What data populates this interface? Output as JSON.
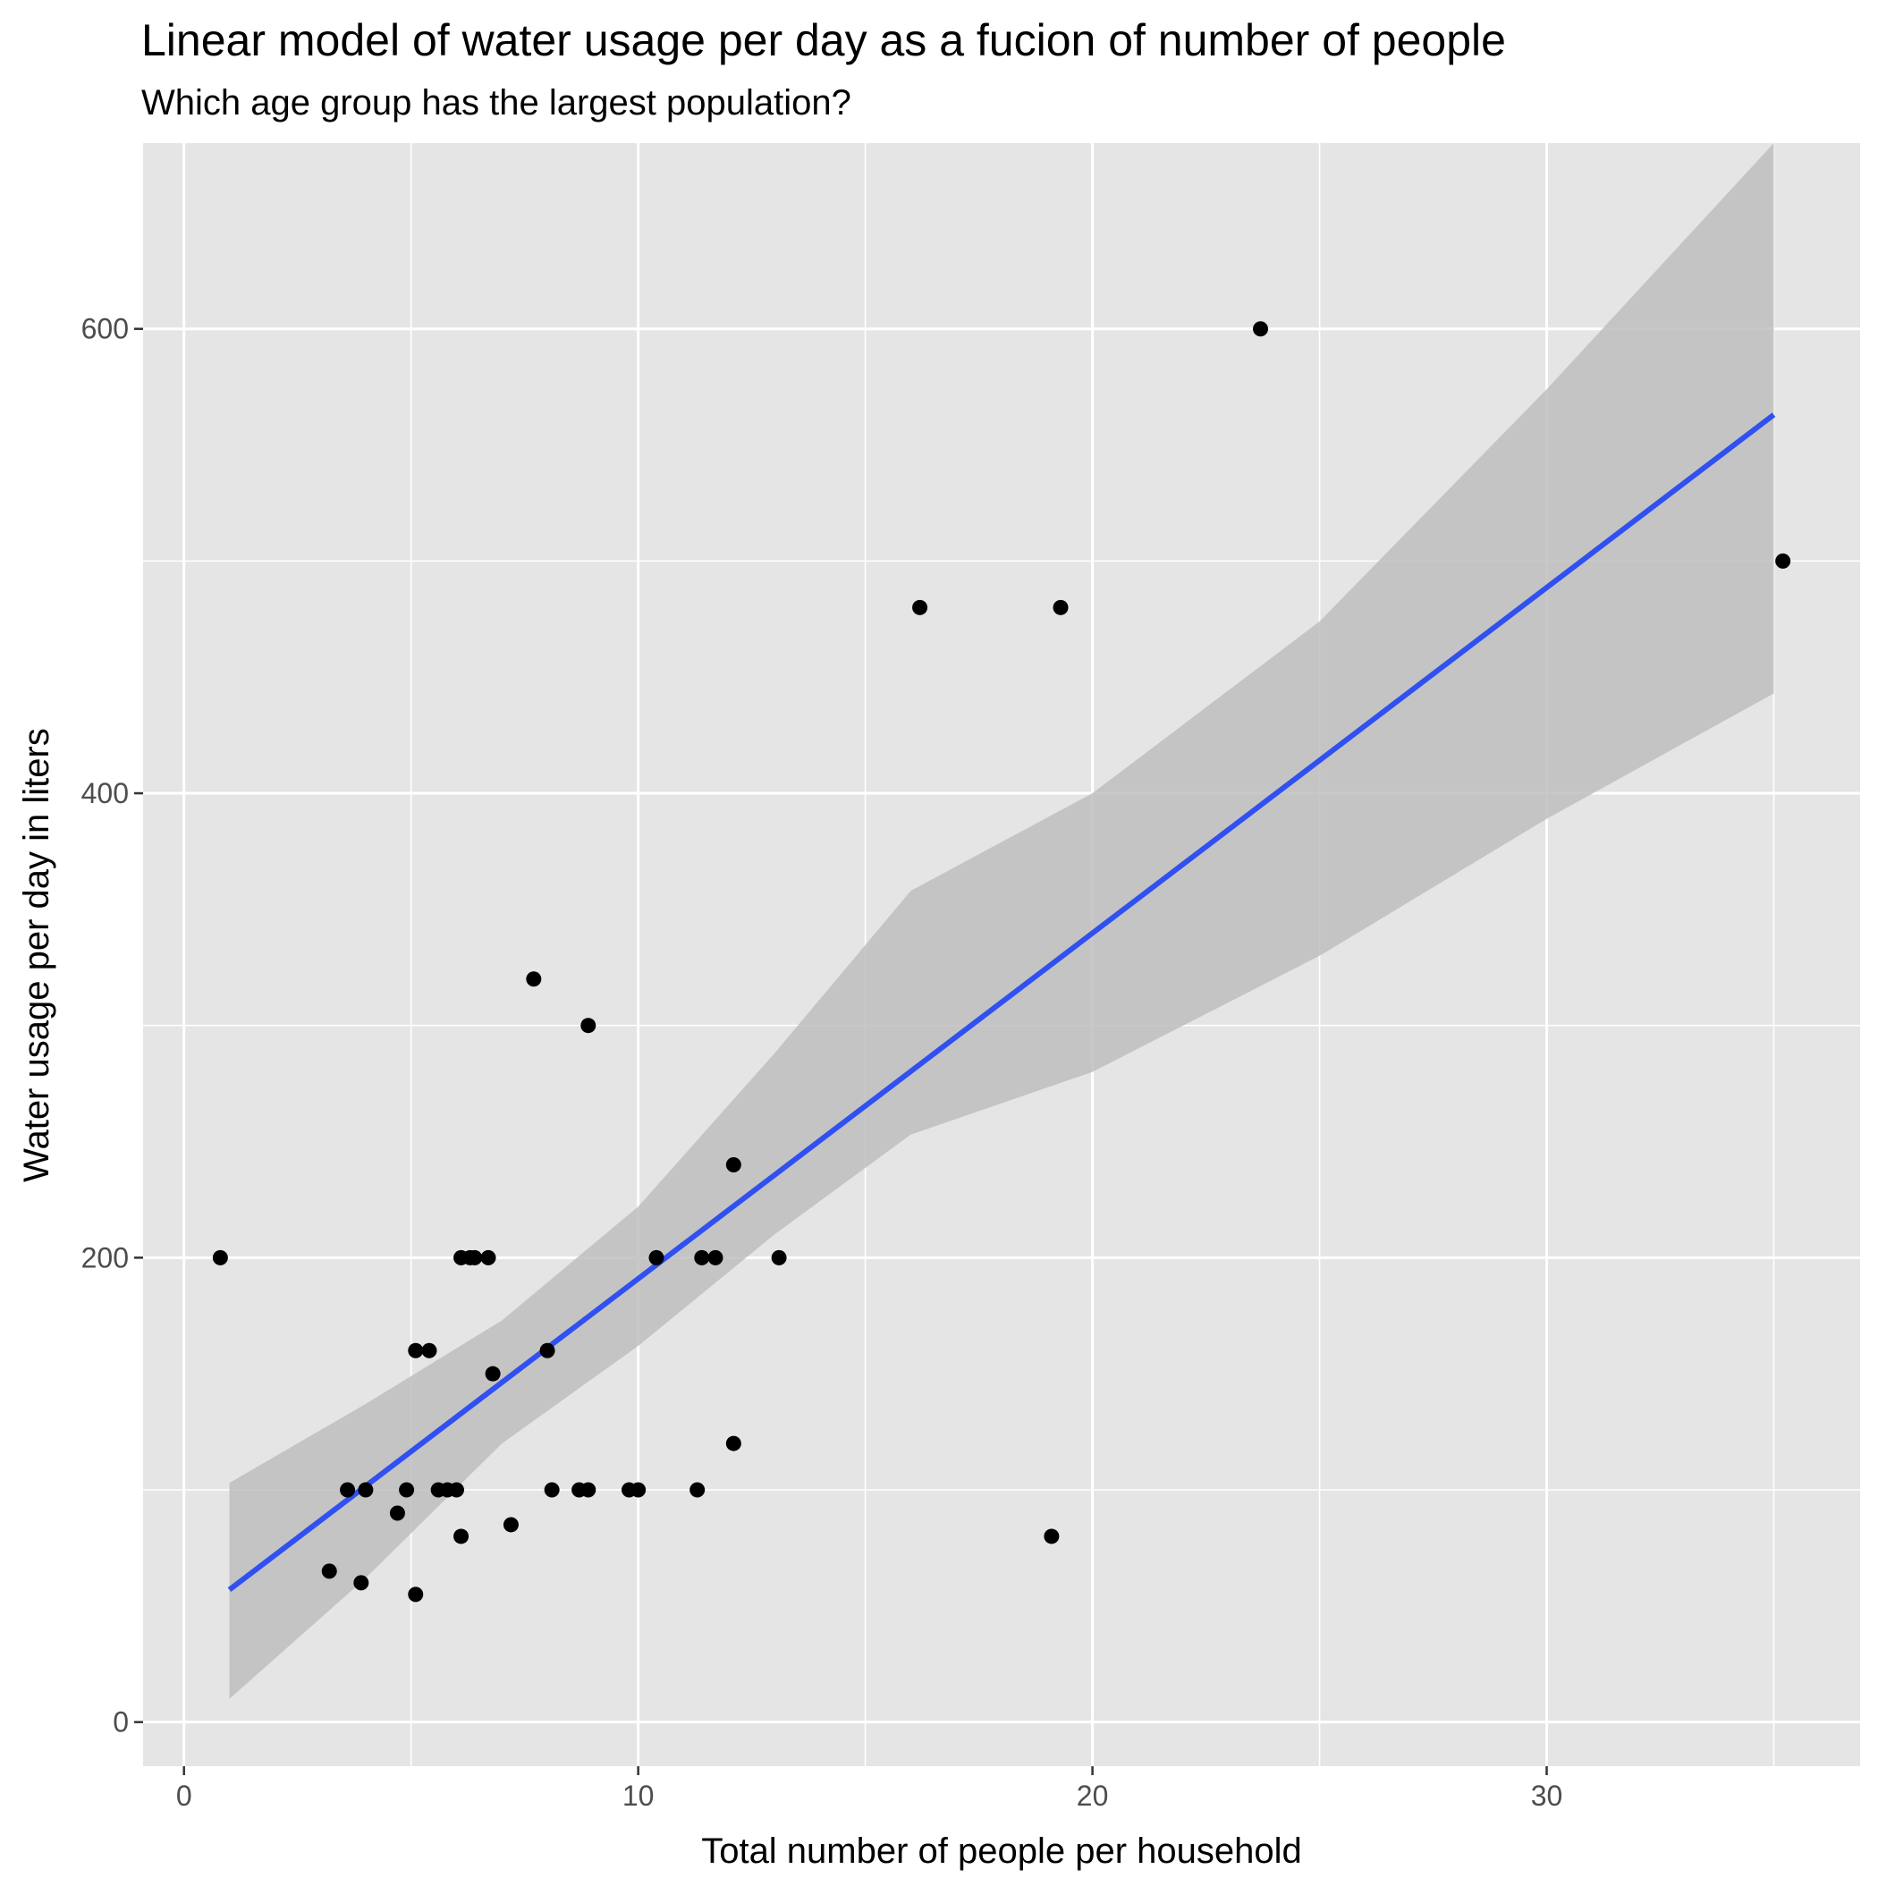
{
  "chart_data": {
    "type": "scatter",
    "title": "Linear model of water usage per day as a fucion of number of people",
    "subtitle": "Which age group has the largest population?",
    "xlabel": "Total number of people per household",
    "ylabel": "Water usage per day in liters",
    "xlim": [
      -0.9,
      36.9
    ],
    "ylim": [
      -19,
      680
    ],
    "x_ticks": [
      0,
      10,
      20,
      30
    ],
    "x_tick_labels": [
      "0",
      "10",
      "20",
      "30"
    ],
    "y_ticks": [
      0,
      200,
      400,
      600
    ],
    "y_tick_labels": [
      "0",
      "200",
      "400",
      "600"
    ],
    "x_minor_ticks": [
      5,
      15,
      25,
      35
    ],
    "y_minor_ticks": [
      100,
      300,
      500
    ],
    "grid": true,
    "panel_background": "#e5e5e5",
    "point_color": "#000000",
    "line_color": "#3050f0",
    "band_color": "#bebebe",
    "points": [
      {
        "x": 0.8,
        "y": 200
      },
      {
        "x": 3.2,
        "y": 65
      },
      {
        "x": 3.6,
        "y": 100
      },
      {
        "x": 3.9,
        "y": 60
      },
      {
        "x": 4.0,
        "y": 100
      },
      {
        "x": 4.7,
        "y": 90
      },
      {
        "x": 4.9,
        "y": 100
      },
      {
        "x": 5.1,
        "y": 160
      },
      {
        "x": 5.1,
        "y": 55
      },
      {
        "x": 5.4,
        "y": 160
      },
      {
        "x": 5.6,
        "y": 100
      },
      {
        "x": 5.8,
        "y": 100
      },
      {
        "x": 6.0,
        "y": 100
      },
      {
        "x": 6.1,
        "y": 200
      },
      {
        "x": 6.1,
        "y": 80
      },
      {
        "x": 6.3,
        "y": 200
      },
      {
        "x": 6.4,
        "y": 200
      },
      {
        "x": 6.7,
        "y": 200
      },
      {
        "x": 6.8,
        "y": 150
      },
      {
        "x": 7.2,
        "y": 85
      },
      {
        "x": 7.7,
        "y": 320
      },
      {
        "x": 8.0,
        "y": 160
      },
      {
        "x": 8.1,
        "y": 100
      },
      {
        "x": 8.7,
        "y": 100
      },
      {
        "x": 8.9,
        "y": 100
      },
      {
        "x": 8.9,
        "y": 300
      },
      {
        "x": 9.8,
        "y": 100
      },
      {
        "x": 10.0,
        "y": 100
      },
      {
        "x": 10.4,
        "y": 200
      },
      {
        "x": 11.3,
        "y": 100
      },
      {
        "x": 11.4,
        "y": 200
      },
      {
        "x": 11.7,
        "y": 200
      },
      {
        "x": 12.1,
        "y": 240
      },
      {
        "x": 12.1,
        "y": 120
      },
      {
        "x": 13.1,
        "y": 200
      },
      {
        "x": 16.2,
        "y": 480
      },
      {
        "x": 19.1,
        "y": 80
      },
      {
        "x": 19.3,
        "y": 480
      },
      {
        "x": 23.7,
        "y": 600
      },
      {
        "x": 35.2,
        "y": 500
      }
    ],
    "fit_line": [
      {
        "x": 1.0,
        "y": 57
      },
      {
        "x": 35.0,
        "y": 563
      }
    ],
    "confidence_band": {
      "upper": [
        {
          "x": 1.0,
          "y": 103
        },
        {
          "x": 4.0,
          "y": 137
        },
        {
          "x": 7.0,
          "y": 173
        },
        {
          "x": 10.0,
          "y": 222
        },
        {
          "x": 13.0,
          "y": 288
        },
        {
          "x": 16.0,
          "y": 358
        },
        {
          "x": 20.0,
          "y": 400
        },
        {
          "x": 25.0,
          "y": 474
        },
        {
          "x": 30.0,
          "y": 574
        },
        {
          "x": 35.0,
          "y": 680
        }
      ],
      "lower": [
        {
          "x": 1.0,
          "y": 10
        },
        {
          "x": 4.0,
          "y": 62
        },
        {
          "x": 7.0,
          "y": 120
        },
        {
          "x": 10.0,
          "y": 162
        },
        {
          "x": 13.0,
          "y": 210
        },
        {
          "x": 16.0,
          "y": 253
        },
        {
          "x": 20.0,
          "y": 280
        },
        {
          "x": 25.0,
          "y": 330
        },
        {
          "x": 30.0,
          "y": 389
        },
        {
          "x": 35.0,
          "y": 443
        }
      ]
    }
  }
}
